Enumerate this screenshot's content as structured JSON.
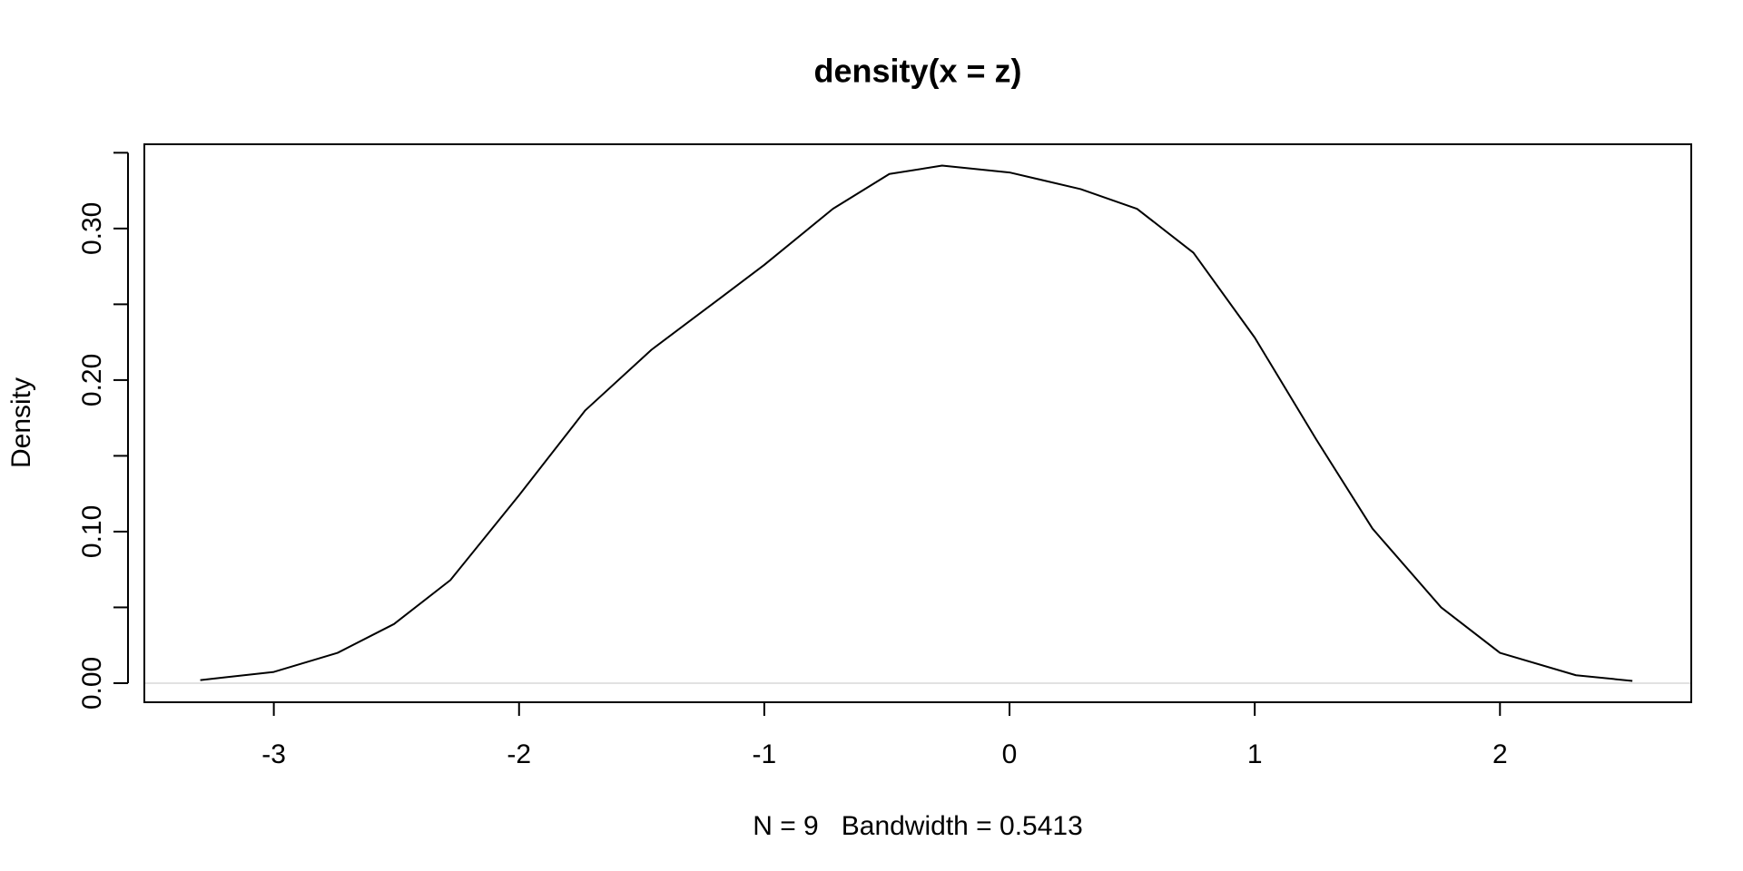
{
  "chart_data": {
    "type": "line",
    "title": "density(x = z)",
    "xlabel": "N = 9   Bandwidth = 0.5413",
    "ylabel": "Density",
    "x": [
      -3.3,
      -3.0,
      -2.74,
      -2.51,
      -2.28,
      -2.0,
      -1.73,
      -1.46,
      -1.18,
      -1.0,
      -0.72,
      -0.49,
      -0.275,
      0.0,
      0.29,
      0.52,
      0.75,
      1.0,
      1.25,
      1.48,
      1.76,
      2.0,
      2.31,
      2.54
    ],
    "values": [
      0.002,
      0.0074,
      0.02,
      0.039,
      0.068,
      0.124,
      0.18,
      0.22,
      0.254,
      0.276,
      0.313,
      0.336,
      0.3415,
      0.337,
      0.326,
      0.313,
      0.284,
      0.228,
      0.161,
      0.102,
      0.05,
      0.02,
      0.0052,
      0.0015
    ],
    "color": "#000000",
    "xlim": [
      -3.528,
      2.78
    ],
    "ylim": [
      -0.0126,
      0.3556
    ],
    "xticks": [
      -3,
      -2,
      -1,
      0,
      1,
      2
    ],
    "yticks": [
      {
        "value": 0,
        "label": "0.00"
      },
      {
        "value": 0.1,
        "label": "0.10"
      },
      {
        "value": 0.2,
        "label": "0.20"
      },
      {
        "value": 0.3,
        "label": "0.30"
      }
    ],
    "yminorticks": [
      0.05,
      0.15,
      0.25,
      0.35
    ],
    "zeroline": true
  }
}
